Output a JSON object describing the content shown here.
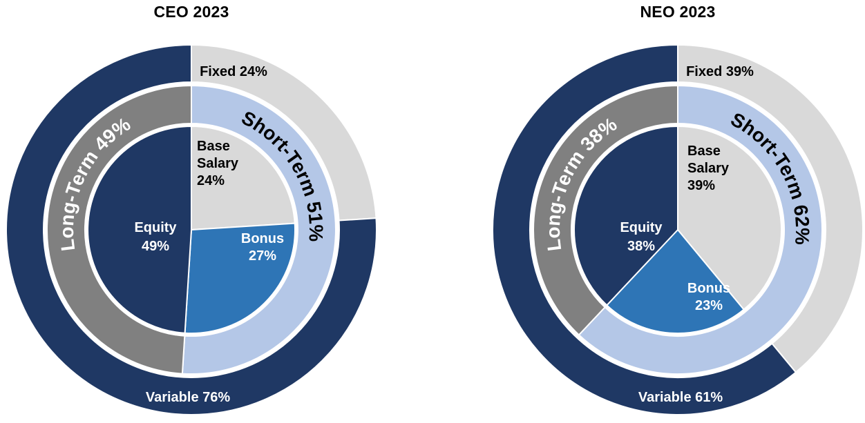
{
  "page": {
    "background": "#FFFFFF"
  },
  "chart_data": [
    {
      "type": "pie",
      "variant": "three-ring-donut",
      "title": "CEO 2023",
      "rings": [
        {
          "name": "outer-ring",
          "segments": [
            {
              "label": "Fixed",
              "value": 24,
              "display": "Fixed 24%",
              "color": "#D9D9D9",
              "text_color": "#000000"
            },
            {
              "label": "Variable",
              "value": 76,
              "display": "Variable 76%",
              "color": "#1F3864",
              "text_color": "#FFFFFF"
            }
          ]
        },
        {
          "name": "middle-ring",
          "segments": [
            {
              "label": "Short-Term",
              "value": 51,
              "display": "Short-Term 51%",
              "color": "#B4C7E7",
              "text_color": "#000000"
            },
            {
              "label": "Long-Term",
              "value": 49,
              "display": "Long-Term 49%",
              "color": "#808080",
              "text_color": "#FFFFFF"
            }
          ]
        },
        {
          "name": "inner-pie",
          "segments": [
            {
              "label": "Base Salary",
              "value": 24,
              "display": "Base\nSalary\n24%",
              "color": "#D9D9D9",
              "text_color": "#000000"
            },
            {
              "label": "Bonus",
              "value": 27,
              "display": "Bonus\n27%",
              "color": "#2E75B6",
              "text_color": "#FFFFFF"
            },
            {
              "label": "Equity",
              "value": 49,
              "display": "Equity\n49%",
              "color": "#1F3864",
              "text_color": "#FFFFFF"
            }
          ]
        }
      ]
    },
    {
      "type": "pie",
      "variant": "three-ring-donut",
      "title": "NEO 2023",
      "rings": [
        {
          "name": "outer-ring",
          "segments": [
            {
              "label": "Fixed",
              "value": 39,
              "display": "Fixed 39%",
              "color": "#D9D9D9",
              "text_color": "#000000"
            },
            {
              "label": "Variable",
              "value": 61,
              "display": "Variable 61%",
              "color": "#1F3864",
              "text_color": "#FFFFFF"
            }
          ]
        },
        {
          "name": "middle-ring",
          "segments": [
            {
              "label": "Short-Term",
              "value": 62,
              "display": "Short-Term 62%",
              "color": "#B4C7E7",
              "text_color": "#000000"
            },
            {
              "label": "Long-Term",
              "value": 38,
              "display": "Long-Term 38%",
              "color": "#808080",
              "text_color": "#FFFFFF"
            }
          ]
        },
        {
          "name": "inner-pie",
          "segments": [
            {
              "label": "Base Salary",
              "value": 39,
              "display": "Base\nSalary\n39%",
              "color": "#D9D9D9",
              "text_color": "#000000"
            },
            {
              "label": "Bonus",
              "value": 23,
              "display": "Bonus\n23%",
              "color": "#2E75B6",
              "text_color": "#FFFFFF"
            },
            {
              "label": "Equity",
              "value": 38,
              "display": "Equity\n38%",
              "color": "#1F3864",
              "text_color": "#FFFFFF"
            }
          ]
        }
      ]
    }
  ]
}
